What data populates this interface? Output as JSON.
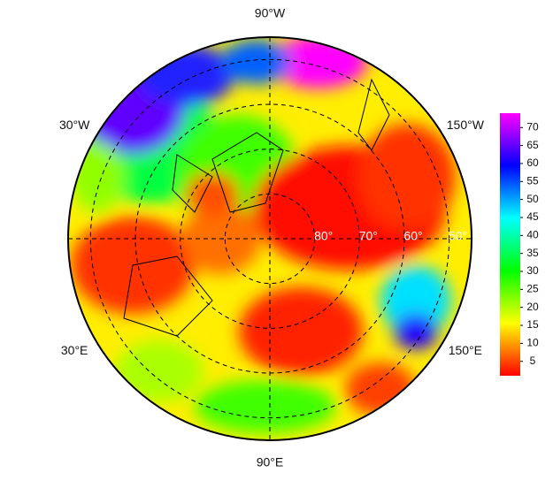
{
  "map": {
    "latlim": [
      45,
      90
    ],
    "latitude_labels": [
      {
        "value": 80,
        "label": "80°"
      },
      {
        "value": 70,
        "label": "70°"
      },
      {
        "value": 60,
        "label": "60°"
      },
      {
        "value": 50,
        "label": "50°"
      }
    ],
    "longitude_labels": [
      {
        "value": -90,
        "label": "90°W"
      },
      {
        "value": -30,
        "label": "30°W"
      },
      {
        "value": -150,
        "label": "150°W"
      },
      {
        "value": 30,
        "label": "30°E"
      },
      {
        "value": 150,
        "label": "150°E"
      },
      {
        "value": 90,
        "label": "90°E"
      }
    ],
    "colorbar": {
      "range": [
        1,
        74
      ],
      "ticks": [
        5,
        10,
        15,
        20,
        25,
        30,
        35,
        40,
        45,
        50,
        55,
        60,
        65,
        70
      ],
      "colors": [
        "#ff0000",
        "#ff8000",
        "#ffff00",
        "#80ff00",
        "#00ff00",
        "#00ff80",
        "#00ffff",
        "#0080ff",
        "#0000ff",
        "#8000ff",
        "#ff00ff"
      ]
    }
  }
}
